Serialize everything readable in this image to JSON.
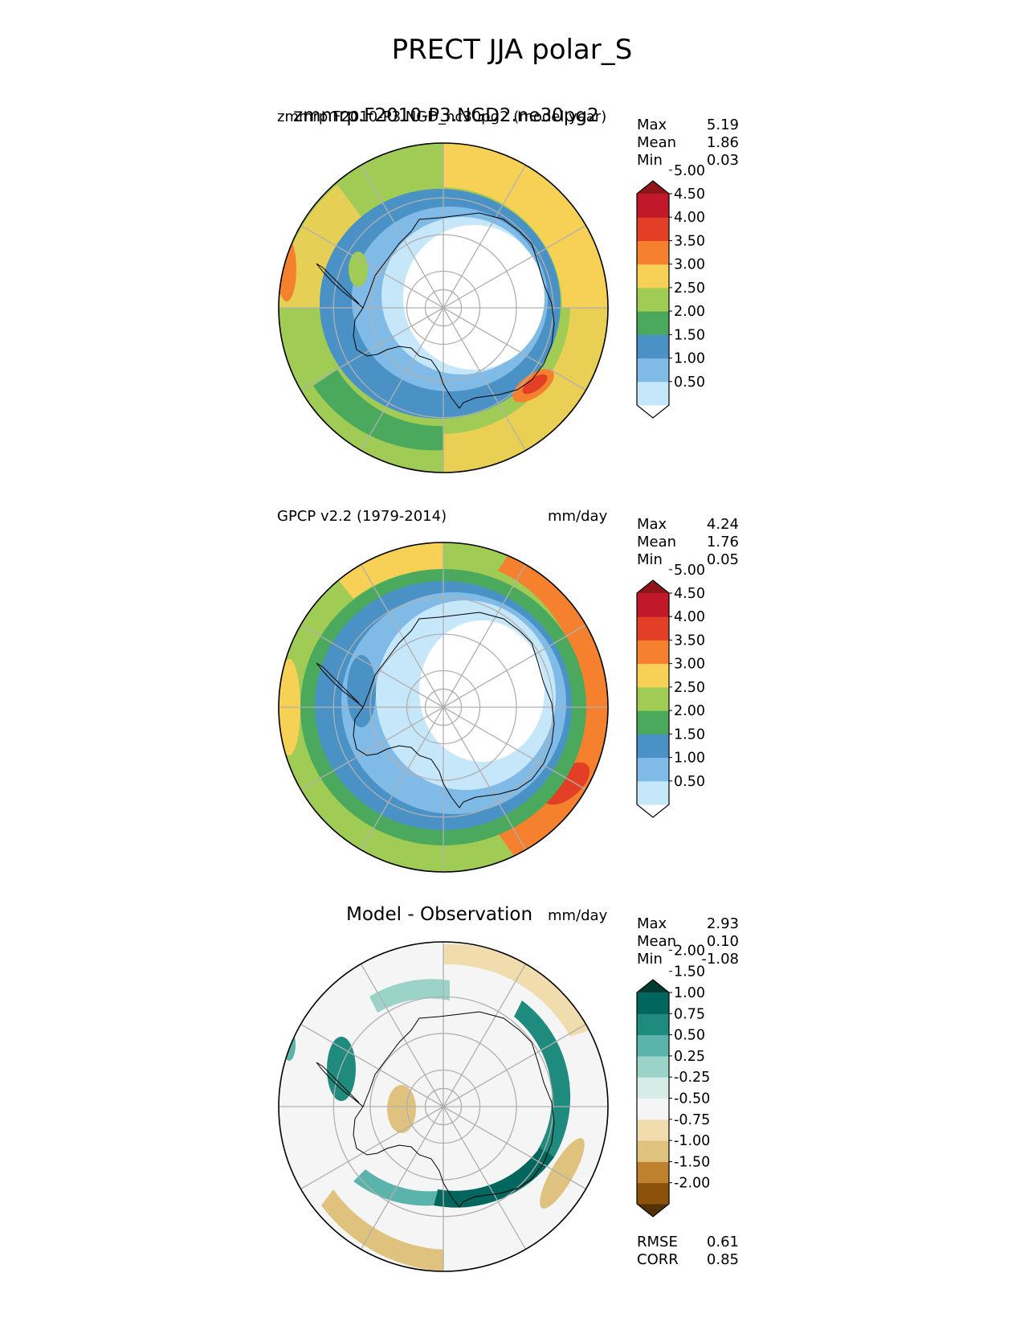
{
  "figure": {
    "title": "PRECT JJA polar_S"
  },
  "panels": [
    {
      "id": "model",
      "left_title": "zmmrp.F2010-P3.NGD2.ne30pg2",
      "left_title_overlap": "zmmrp.F2010-P3.NGD_nc30pg2 (model year)",
      "right_title": "mm/day",
      "stats": [
        {
          "label": "Max",
          "value": "5.19"
        },
        {
          "label": "Mean",
          "value": "1.86"
        },
        {
          "label": "Min",
          "value": "0.03"
        }
      ],
      "colorbar": {
        "colors": [
          "#ffffff",
          "#c6e6f9",
          "#7fbbe6",
          "#4a92c6",
          "#4aa95c",
          "#a0cb54",
          "#f6d155",
          "#f5802e",
          "#e33e26",
          "#c1182a",
          "#8e1518"
        ],
        "ticks": [
          "0.50",
          "1.00",
          "1.50",
          "2.00",
          "2.50",
          "3.00",
          "3.50",
          "4.00",
          "4.50",
          "5.00"
        ]
      }
    },
    {
      "id": "obs",
      "left_title": "GPCP v2.2 (1979-2014)",
      "right_title": "mm/day",
      "stats": [
        {
          "label": "Max",
          "value": "4.24"
        },
        {
          "label": "Mean",
          "value": "1.76"
        },
        {
          "label": "Min",
          "value": "0.05"
        }
      ],
      "colorbar": {
        "colors": [
          "#ffffff",
          "#c6e6f9",
          "#7fbbe6",
          "#4a92c6",
          "#4aa95c",
          "#a0cb54",
          "#f6d155",
          "#f5802e",
          "#e33e26",
          "#c1182a",
          "#8e1518"
        ],
        "ticks": [
          "0.50",
          "1.00",
          "1.50",
          "2.00",
          "2.50",
          "3.00",
          "3.50",
          "4.00",
          "4.50",
          "5.00"
        ]
      }
    },
    {
      "id": "diff",
      "center_title": "Model - Observation",
      "right_title": "mm/day",
      "stats": [
        {
          "label": "Max",
          "value": "2.93"
        },
        {
          "label": "Mean",
          "value": "0.10"
        },
        {
          "label": "Min",
          "value": "-1.08"
        }
      ],
      "extra_stats": [
        {
          "label": "RMSE",
          "value": "0.61"
        },
        {
          "label": "CORR",
          "value": "0.85"
        }
      ],
      "colorbar": {
        "colors": [
          "#543005",
          "#8c510a",
          "#bf812d",
          "#dfc27d",
          "#f0dcad",
          "#f5f5f5",
          "#d6ece7",
          "#9bd3c8",
          "#5ab4ac",
          "#1e8b7e",
          "#01665e",
          "#003c30"
        ],
        "ticks": [
          "-2.00",
          "-1.50",
          "-1.00",
          "-0.75",
          "-0.50",
          "-0.25",
          "0.25",
          "0.50",
          "0.75",
          "1.00",
          "1.50",
          "2.00"
        ]
      }
    }
  ]
}
